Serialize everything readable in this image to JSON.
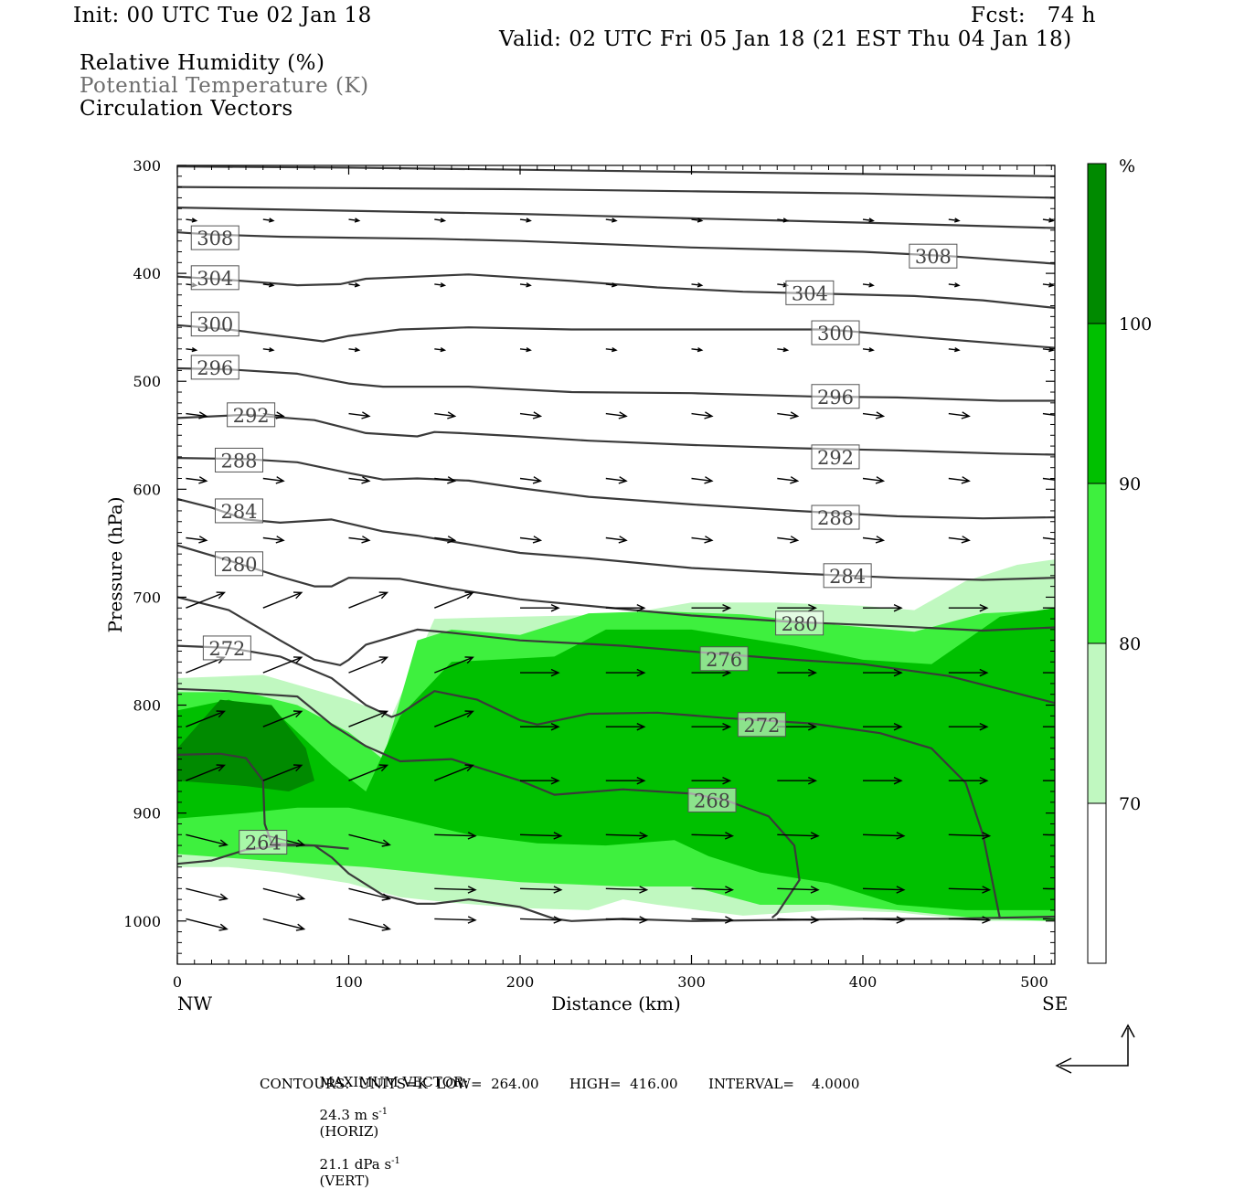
{
  "header": {
    "init": "Init: 00 UTC Tue 02 Jan 18",
    "fcst": "Fcst:   74 h",
    "valid": "Valid: 02 UTC Fri 05 Jan 18 (21 EST Thu 04 Jan 18)",
    "fields": [
      "Relative Humidity (%)",
      "Potential Temperature (K)",
      "Circulation Vectors"
    ]
  },
  "chart_data": {
    "type": "cross-section",
    "title": "",
    "xlabel": "Distance (km)",
    "ylabel": "Pressure (hPa)",
    "xlim": [
      0,
      512
    ],
    "ylim": [
      1040,
      300
    ],
    "x_ticks": [
      0,
      100,
      200,
      300,
      400,
      500
    ],
    "y_ticks": [
      300,
      400,
      500,
      600,
      700,
      800,
      900,
      1000
    ],
    "x_end_labels": {
      "left": "NW",
      "right": "SE"
    },
    "grid": false,
    "colorbar": {
      "unit": "%",
      "levels": [
        70,
        80,
        90,
        100
      ],
      "colors": [
        "#ffffff",
        "#c0f8c0",
        "#3ef03e",
        "#00c000",
        "#008a00"
      ]
    },
    "theta_contours": {
      "units": "K",
      "line_color": "#3a3a3a",
      "lines": [
        {
          "label": "308",
          "x": [
            0,
            20,
            60,
            100,
            150,
            200,
            250,
            300,
            350,
            400,
            450,
            512
          ],
          "p": [
            362,
            364,
            366,
            367,
            368,
            370,
            373,
            376,
            378,
            380,
            384,
            391
          ]
        },
        {
          "label": "304",
          "x": [
            0,
            30,
            70,
            95,
            110,
            170,
            230,
            280,
            330,
            380,
            430,
            470,
            512
          ],
          "p": [
            403,
            406,
            411,
            410,
            405,
            401,
            407,
            413,
            417,
            419,
            421,
            425,
            432
          ]
        },
        {
          "label": "300",
          "x": [
            0,
            30,
            60,
            85,
            100,
            130,
            170,
            230,
            300,
            380,
            440,
            512
          ],
          "p": [
            448,
            452,
            458,
            463,
            458,
            452,
            450,
            452,
            452,
            452,
            460,
            469
          ]
        },
        {
          "label": "296",
          "x": [
            0,
            30,
            70,
            100,
            120,
            170,
            230,
            300,
            370,
            420,
            480,
            512
          ],
          "p": [
            488,
            489,
            493,
            502,
            505,
            505,
            510,
            511,
            514,
            515,
            518,
            518
          ]
        },
        {
          "label": "292",
          "x": [
            0,
            40,
            80,
            110,
            140,
            150,
            165,
            200,
            240,
            300,
            360,
            420,
            480,
            512
          ],
          "p": [
            534,
            531,
            536,
            548,
            551,
            547,
            548,
            551,
            555,
            559,
            562,
            564,
            567,
            568
          ]
        },
        {
          "label": "288",
          "x": [
            0,
            40,
            70,
            100,
            120,
            140,
            170,
            200,
            240,
            300,
            360,
            420,
            470,
            512
          ],
          "p": [
            571,
            572,
            575,
            585,
            591,
            590,
            592,
            599,
            607,
            614,
            620,
            625,
            627,
            626
          ]
        },
        {
          "label": "284",
          "x": [
            0,
            20,
            40,
            60,
            90,
            120,
            140,
            170,
            200,
            240,
            300,
            360,
            420,
            470,
            512
          ],
          "p": [
            609,
            617,
            628,
            631,
            628,
            639,
            643,
            651,
            659,
            664,
            673,
            678,
            682,
            684,
            682
          ]
        },
        {
          "label": "280",
          "x": [
            0,
            30,
            60,
            80,
            90,
            100,
            130,
            160,
            200,
            240,
            300,
            360,
            420,
            470,
            512
          ],
          "p": [
            652,
            666,
            681,
            690,
            690,
            682,
            683,
            692,
            702,
            708,
            717,
            723,
            727,
            731,
            728
          ]
        },
        {
          "label": "276",
          "x": [
            0,
            30,
            60,
            80,
            95,
            100,
            110,
            140,
            160,
            200,
            260,
            320,
            360,
            400,
            450,
            512
          ],
          "p": [
            700,
            712,
            740,
            758,
            763,
            758,
            744,
            730,
            733,
            740,
            745,
            753,
            758,
            762,
            773,
            798
          ]
        },
        {
          "label": "272",
          "x": [
            0,
            30,
            60,
            90,
            110,
            125,
            130,
            150,
            175,
            200,
            210,
            240,
            280,
            320,
            370,
            410,
            440,
            460,
            470,
            480
          ],
          "p": [
            745,
            747,
            755,
            775,
            800,
            811,
            808,
            787,
            795,
            814,
            818,
            808,
            807,
            812,
            817,
            826,
            840,
            872,
            920,
            998
          ]
        },
        {
          "label": "268",
          "x": [
            0,
            30,
            50,
            70,
            90,
            110,
            130,
            160,
            200,
            220,
            260,
            300,
            320,
            345,
            360,
            363,
            350,
            347
          ],
          "p": [
            785,
            787,
            790,
            792,
            818,
            838,
            852,
            850,
            870,
            883,
            878,
            882,
            888,
            903,
            930,
            962,
            993,
            997
          ]
        },
        {
          "label": "264",
          "x": [
            0,
            25,
            40,
            50,
            51,
            55,
            65,
            80,
            90,
            100,
            120,
            140,
            150,
            170,
            200,
            220,
            230,
            260,
            300,
            350,
            400,
            450,
            512
          ],
          "p": [
            846,
            845,
            849,
            870,
            910,
            928,
            929,
            930,
            941,
            956,
            976,
            984,
            984,
            980,
            987,
            998,
            1000,
            998,
            1000,
            999,
            998,
            998,
            996
          ]
        },
        {
          "label": "",
          "x": [
            0,
            20,
            40,
            60,
            80,
            100
          ],
          "p": [
            947,
            944,
            934,
            930,
            930,
            933
          ]
        },
        {
          "label": "",
          "x": [
            0,
            100,
            200,
            300,
            400,
            512
          ],
          "p": [
            301,
            302,
            304,
            306,
            308,
            310
          ]
        },
        {
          "label": "",
          "x": [
            0,
            100,
            200,
            300,
            400,
            512
          ],
          "p": [
            320,
            321,
            322,
            324,
            326,
            330
          ]
        },
        {
          "label": "",
          "x": [
            0,
            100,
            200,
            300,
            400,
            512
          ],
          "p": [
            339,
            342,
            345,
            349,
            353,
            358
          ]
        }
      ],
      "labels": [
        {
          "text": "308",
          "x": 22,
          "p": 367
        },
        {
          "text": "308",
          "x": 441,
          "p": 384
        },
        {
          "text": "304",
          "x": 22,
          "p": 404
        },
        {
          "text": "304",
          "x": 369,
          "p": 418
        },
        {
          "text": "300",
          "x": 22,
          "p": 447
        },
        {
          "text": "300",
          "x": 384,
          "p": 455
        },
        {
          "text": "296",
          "x": 22,
          "p": 487
        },
        {
          "text": "296",
          "x": 384,
          "p": 514
        },
        {
          "text": "292",
          "x": 43,
          "p": 531
        },
        {
          "text": "292",
          "x": 384,
          "p": 570
        },
        {
          "text": "288",
          "x": 36,
          "p": 573
        },
        {
          "text": "288",
          "x": 384,
          "p": 626
        },
        {
          "text": "284",
          "x": 36,
          "p": 620
        },
        {
          "text": "284",
          "x": 391,
          "p": 680
        },
        {
          "text": "280",
          "x": 36,
          "p": 669
        },
        {
          "text": "280",
          "x": 363,
          "p": 724
        },
        {
          "text": "276",
          "x": 319,
          "p": 757
        },
        {
          "text": "272",
          "x": 29,
          "p": 747
        },
        {
          "text": "272",
          "x": 341,
          "p": 818
        },
        {
          "text": "268",
          "x": 312,
          "p": 888
        },
        {
          "text": "264",
          "x": 50,
          "p": 927
        }
      ]
    },
    "rh_shading": [
      {
        "level": 70,
        "x": [
          0,
          50,
          100,
          125,
          150,
          200,
          260,
          300,
          350,
          400,
          430,
          460,
          490,
          512,
          512,
          470,
          420,
          380,
          330,
          280,
          260,
          240,
          200,
          160,
          130,
          100,
          60,
          30,
          0
        ],
        "p": [
          775,
          772,
          795,
          810,
          720,
          718,
          716,
          705,
          705,
          708,
          712,
          685,
          670,
          665,
          1000,
          1000,
          992,
          990,
          995,
          985,
          980,
          990,
          988,
          983,
          978,
          965,
          955,
          950,
          950
        ]
      },
      {
        "level": 80,
        "x": [
          0,
          40,
          70,
          100,
          120,
          140,
          160,
          200,
          240,
          280,
          330,
          380,
          430,
          470,
          512,
          512,
          470,
          420,
          380,
          340,
          300,
          260,
          200,
          160,
          110,
          60,
          0
        ],
        "p": [
          788,
          788,
          800,
          825,
          850,
          740,
          730,
          735,
          715,
          713,
          716,
          725,
          732,
          715,
          712,
          1000,
          998,
          990,
          985,
          985,
          968,
          968,
          964,
          958,
          950,
          945,
          938
        ]
      },
      {
        "level": 90,
        "x": [
          0,
          30,
          60,
          90,
          110,
          130,
          160,
          220,
          250,
          300,
          360,
          400,
          440,
          480,
          512,
          512,
          460,
          420,
          380,
          340,
          310,
          290,
          250,
          210,
          170,
          130,
          100,
          70,
          40,
          0
        ],
        "p": [
          805,
          795,
          810,
          855,
          880,
          810,
          760,
          755,
          730,
          730,
          745,
          758,
          762,
          718,
          710,
          990,
          990,
          985,
          965,
          955,
          940,
          925,
          930,
          928,
          920,
          905,
          895,
          895,
          900,
          905
        ]
      },
      {
        "level": 100,
        "x": [
          0,
          25,
          55,
          75,
          80,
          65,
          40,
          0
        ],
        "p": [
          840,
          795,
          800,
          840,
          870,
          880,
          875,
          870
        ]
      }
    ],
    "circulation_vectors_note": "Horizontal/vertical circulation arrows overlaid across the cross-section"
  },
  "footer": {
    "max_vector_label": "MAXIMUM VECTOR:",
    "max_horiz": "24.3 m s",
    "max_horiz_unit": "-1",
    "max_horiz_tag": "(HORIZ)",
    "max_vert": "21.1 dPa s",
    "max_vert_unit": "-1",
    "max_vert_tag": "(VERT)",
    "contours": "CONTOURS:  UNITS=K  LOW=  264.00       HIGH=  416.00       INTERVAL=    4.0000"
  }
}
